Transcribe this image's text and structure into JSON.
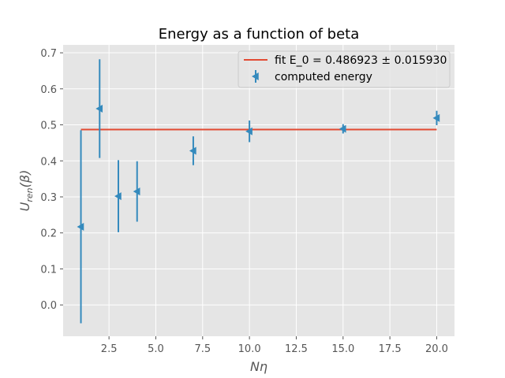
{
  "chart_data": {
    "type": "scatter",
    "title": "Energy as a function of beta",
    "xlabel_main": "N",
    "xlabel_greek": "η",
    "ylabel_main": "U",
    "ylabel_sub": "ren",
    "ylabel_arg": "(β)",
    "xlim": [
      0.05,
      20.95
    ],
    "ylim": [
      -0.087,
      0.722
    ],
    "xticks": [
      "2.5",
      "5.0",
      "7.5",
      "10.0",
      "12.5",
      "15.0",
      "17.5",
      "20.0"
    ],
    "xtick_values": [
      2.5,
      5.0,
      7.5,
      10.0,
      12.5,
      15.0,
      17.5,
      20.0
    ],
    "yticks": [
      "0.0",
      "0.1",
      "0.2",
      "0.3",
      "0.4",
      "0.5",
      "0.6",
      "0.7"
    ],
    "ytick_values": [
      0.0,
      0.1,
      0.2,
      0.3,
      0.4,
      0.5,
      0.6,
      0.7
    ],
    "grid": true,
    "legend_position": "top-right",
    "series": [
      {
        "name": "fit E_0 = 0.486923 ± 0.015930",
        "kind": "line",
        "color": "#e24a33",
        "x": [
          1,
          20
        ],
        "y": [
          0.486923,
          0.486923
        ]
      },
      {
        "name": "computed energy",
        "kind": "errorbar",
        "marker": "triangle-left",
        "color": "#348abd",
        "x": [
          1,
          2,
          3,
          4,
          7,
          10,
          15,
          20
        ],
        "y": [
          0.217,
          0.545,
          0.302,
          0.315,
          0.428,
          0.482,
          0.489,
          0.519
        ],
        "yerr": [
          0.268,
          0.137,
          0.1,
          0.084,
          0.04,
          0.03,
          0.013,
          0.02
        ]
      }
    ]
  },
  "colors": {
    "plot_background": "#e5e5e5",
    "grid": "#ffffff"
  }
}
